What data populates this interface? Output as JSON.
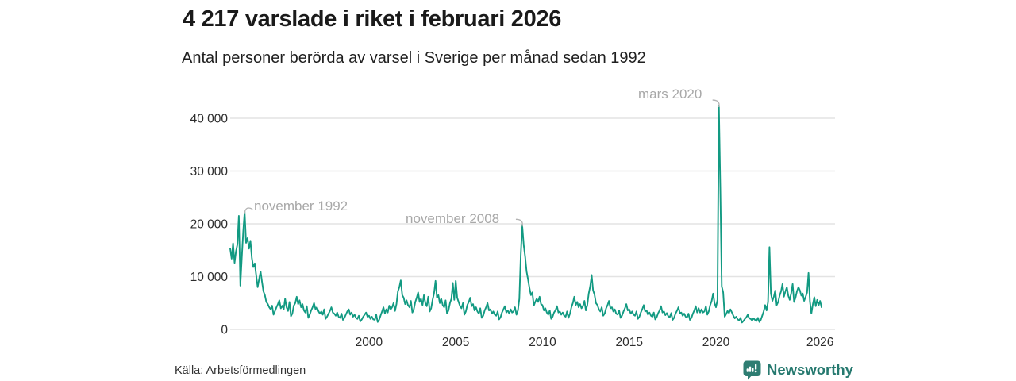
{
  "header": {
    "title": "4 217 varslade i riket i februari 2026",
    "subtitle": "Antal personer berörda av varsel i Sverige per månad sedan 1992"
  },
  "footer": {
    "source": "Källa: Arbetsförmedlingen",
    "brand": "Newsworthy"
  },
  "colors": {
    "line": "#129a82",
    "grid": "#e3e3e3",
    "axis_text": "#2d2d2d",
    "annotation": "#a8a8a8",
    "brand_teal": "#2e7d72"
  },
  "chart_data": {
    "type": "line",
    "title": "4 217 varslade i riket i februari 2026",
    "subtitle": "Antal personer berörda av varsel i Sverige per månad sedan 1992",
    "x_start": "1992-01",
    "x_end": "2026-02",
    "x_ticks": [
      2000,
      2005,
      2010,
      2015,
      2020,
      2026
    ],
    "x_tick_labels": [
      "2000",
      "2005",
      "2010",
      "2015",
      "2020",
      "2026"
    ],
    "y_ticks": [
      0,
      10000,
      20000,
      30000,
      40000
    ],
    "y_tick_labels": [
      "0",
      "10 000",
      "20 000",
      "30 000",
      "40 000"
    ],
    "ylim": [
      0,
      43000
    ],
    "grid": "horizontal",
    "legend": "none",
    "latest_value": 4217,
    "annotations": [
      {
        "label": "november 1992",
        "x": "1992-11",
        "value": 22300
      },
      {
        "label": "november 2008",
        "x": "2008-11",
        "value": 19800
      },
      {
        "label": "mars 2020",
        "x": "2020-03",
        "value": 42400
      }
    ],
    "series": [
      {
        "name": "Antal personer berörda av varsel",
        "start_year": 1992,
        "start_month": 1,
        "values": [
          15300,
          13400,
          16300,
          12600,
          14800,
          16100,
          21500,
          8300,
          13500,
          18500,
          22300,
          16400,
          17300,
          15300,
          16800,
          13500,
          11800,
          12500,
          10200,
          8000,
          9500,
          11000,
          9000,
          7200,
          6500,
          5200,
          4800,
          4200,
          3800,
          4500,
          2800,
          3500,
          4200,
          4800,
          5500,
          4000,
          4500,
          3800,
          5800,
          4200,
          3500,
          5200,
          2500,
          3000,
          4500,
          5000,
          6200,
          4800,
          5500,
          4200,
          4800,
          3600,
          3200,
          4400,
          2200,
          2800,
          3600,
          4200,
          5000,
          3800,
          4200,
          3500,
          3000,
          3400,
          2800,
          3800,
          2000,
          2400,
          3000,
          3500,
          4200,
          3200,
          3000,
          2600,
          3200,
          2400,
          2200,
          3000,
          1800,
          2200,
          2800,
          3400,
          3800,
          2800,
          3200,
          2400,
          2800,
          2200,
          2000,
          2600,
          1500,
          1900,
          2400,
          2800,
          3200,
          2400,
          2600,
          2000,
          2400,
          1900,
          1800,
          2800,
          1400,
          1800,
          2600,
          3400,
          4200,
          3000,
          3800,
          3200,
          4500,
          3800,
          4200,
          5000,
          3500,
          4800,
          7200,
          8000,
          9300,
          6500,
          6000,
          4800,
          5500,
          4600,
          4200,
          5400,
          3200,
          3800,
          5200,
          6000,
          7000,
          5200,
          5800,
          4600,
          6500,
          5000,
          4400,
          6200,
          3400,
          4000,
          5600,
          6800,
          9200,
          6000,
          6500,
          5000,
          5800,
          4600,
          4200,
          5500,
          3000,
          3600,
          5000,
          5800,
          8800,
          5600,
          9200,
          6000,
          5200,
          4400,
          4000,
          5000,
          2800,
          3400,
          4600,
          5200,
          6000,
          4400,
          4800,
          3600,
          4200,
          3400,
          3000,
          4000,
          2200,
          2600,
          3600,
          4200,
          5000,
          3600,
          3800,
          3000,
          3400,
          2800,
          2600,
          3400,
          1900,
          2300,
          3200,
          3800,
          4400,
          3200,
          3600,
          3000,
          3800,
          3200,
          3400,
          4200,
          2800,
          3600,
          5800,
          14000,
          19800,
          16000,
          13800,
          11000,
          9500,
          7800,
          6500,
          7000,
          4500,
          5200,
          5800,
          5200,
          6200,
          4800,
          4600,
          3600,
          4000,
          3200,
          2800,
          3600,
          2000,
          2400,
          3200,
          3600,
          4400,
          3200,
          3400,
          2800,
          3200,
          2600,
          2400,
          3400,
          2200,
          3000,
          4200,
          5000,
          6200,
          4600,
          5200,
          4200,
          4800,
          4000,
          4400,
          5400,
          3600,
          4600,
          6800,
          8200,
          10300,
          7400,
          6600,
          5000,
          4600,
          3800,
          3400,
          4200,
          2600,
          3000,
          4000,
          4600,
          5400,
          4000,
          4200,
          3400,
          3800,
          3000,
          2800,
          3600,
          2200,
          2600,
          3400,
          4000,
          4800,
          3600,
          3800,
          3000,
          3400,
          2800,
          2600,
          3400,
          2000,
          2400,
          3200,
          3800,
          4600,
          3400,
          3600,
          2800,
          3200,
          2600,
          2400,
          3200,
          1900,
          2300,
          3100,
          3600,
          4400,
          3200,
          3400,
          2700,
          3100,
          2500,
          2300,
          3100,
          1800,
          2200,
          3000,
          3500,
          4200,
          3100,
          3200,
          2600,
          3000,
          2400,
          2300,
          3000,
          1800,
          2200,
          3000,
          3600,
          4400,
          3200,
          4000,
          3200,
          3800,
          3200,
          3400,
          4400,
          2800,
          3400,
          4600,
          5400,
          6800,
          5000,
          4200,
          5600,
          42400,
          26750,
          8130,
          7000,
          2400,
          2900,
          3500,
          3100,
          3800,
          3200,
          2600,
          2100,
          2400,
          1900,
          1700,
          2200,
          1300,
          1600,
          2000,
          2300,
          2800,
          2100,
          2000,
          1700,
          2100,
          1800,
          1600,
          2200,
          1400,
          1800,
          2600,
          3400,
          4600,
          3600,
          5200,
          15600,
          6800,
          5400,
          6200,
          7400,
          4600,
          5200,
          6400,
          7200,
          8600,
          6200,
          7200,
          8000,
          6400,
          5600,
          6800,
          8600,
          5200,
          6000,
          7200,
          8000,
          7400,
          6400,
          6800,
          5400,
          6200,
          7000,
          10700,
          5300,
          3000,
          4800,
          6100,
          4400,
          5600,
          4600,
          5400,
          4217
        ]
      }
    ]
  }
}
